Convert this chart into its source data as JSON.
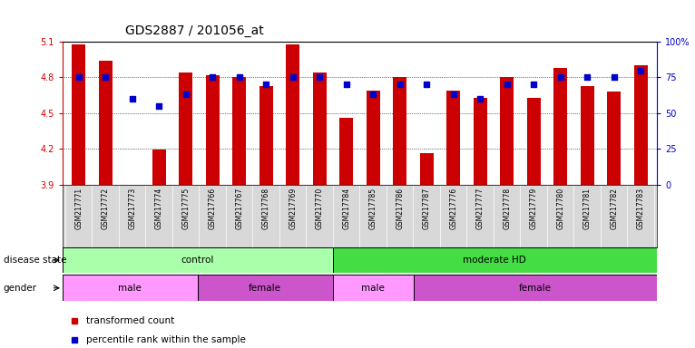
{
  "title": "GDS2887 / 201056_at",
  "samples": [
    "GSM217771",
    "GSM217772",
    "GSM217773",
    "GSM217774",
    "GSM217775",
    "GSM217766",
    "GSM217767",
    "GSM217768",
    "GSM217769",
    "GSM217770",
    "GSM217784",
    "GSM217785",
    "GSM217786",
    "GSM217787",
    "GSM217776",
    "GSM217777",
    "GSM217778",
    "GSM217779",
    "GSM217780",
    "GSM217781",
    "GSM217782",
    "GSM217783"
  ],
  "bar_values": [
    5.08,
    4.94,
    3.9,
    4.19,
    4.84,
    4.82,
    4.8,
    4.73,
    5.08,
    4.84,
    4.46,
    4.69,
    4.8,
    4.16,
    4.69,
    4.63,
    4.8,
    4.63,
    4.88,
    4.73,
    4.68,
    4.9
  ],
  "dot_percentiles": [
    75,
    75,
    60,
    55,
    63,
    75,
    75,
    70,
    75,
    75,
    70,
    63,
    70,
    70,
    63,
    60,
    70,
    70,
    75,
    75,
    75,
    80
  ],
  "ylim_left": [
    3.9,
    5.1
  ],
  "ylim_right": [
    0,
    100
  ],
  "yticks_left": [
    3.9,
    4.2,
    4.5,
    4.8,
    5.1
  ],
  "yticks_right": [
    0,
    25,
    50,
    75,
    100
  ],
  "ytick_labels_right": [
    "0",
    "25",
    "50",
    "75",
    "100%"
  ],
  "bar_color": "#cc0000",
  "dot_color": "#0000cc",
  "bar_bottom": 3.9,
  "disease_state_groups": [
    {
      "label": "control",
      "start": 0,
      "end": 10,
      "color": "#aaffaa"
    },
    {
      "label": "moderate HD",
      "start": 10,
      "end": 22,
      "color": "#44dd44"
    }
  ],
  "gender_groups": [
    {
      "label": "male",
      "start": 0,
      "end": 5,
      "color": "#ff99ff"
    },
    {
      "label": "female",
      "start": 5,
      "end": 10,
      "color": "#cc55cc"
    },
    {
      "label": "male",
      "start": 10,
      "end": 13,
      "color": "#ff99ff"
    },
    {
      "label": "female",
      "start": 13,
      "end": 22,
      "color": "#cc55cc"
    }
  ],
  "disease_state_label": "disease state",
  "gender_label": "gender",
  "legend_items": [
    {
      "label": "transformed count",
      "color": "#cc0000"
    },
    {
      "label": "percentile rank within the sample",
      "color": "#0000cc"
    }
  ],
  "background_color": "#ffffff",
  "title_fontsize": 10,
  "tick_fontsize": 7,
  "sample_fontsize": 5.5
}
